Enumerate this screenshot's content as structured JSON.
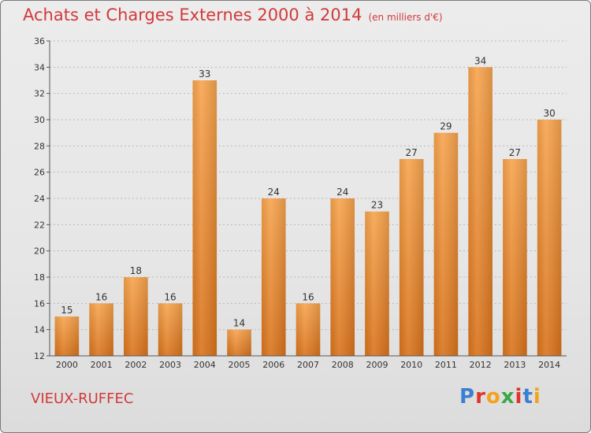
{
  "chart_data": {
    "type": "bar",
    "title": "Achats et Charges Externes 2000 à 2014",
    "subtitle": "(en milliers d'€)",
    "categories": [
      "2000",
      "2001",
      "2002",
      "2003",
      "2004",
      "2005",
      "2006",
      "2007",
      "2008",
      "2009",
      "2010",
      "2011",
      "2012",
      "2013",
      "2014"
    ],
    "values": [
      15,
      16,
      18,
      16,
      33,
      14,
      24,
      16,
      24,
      23,
      27,
      29,
      34,
      27,
      30
    ],
    "ylim": [
      12,
      36
    ],
    "yticks": [
      12,
      14,
      16,
      18,
      20,
      22,
      24,
      26,
      28,
      30,
      32,
      34,
      36
    ],
    "grid": "horizontal-dashed",
    "legend": "none",
    "colors": {
      "bar_light": "#f7a44e",
      "bar_dark": "#d9731c",
      "title": "#d23a3a"
    }
  },
  "footer": {
    "commune": "VIEUX-RUFFEC",
    "logo": "Proxiti"
  }
}
